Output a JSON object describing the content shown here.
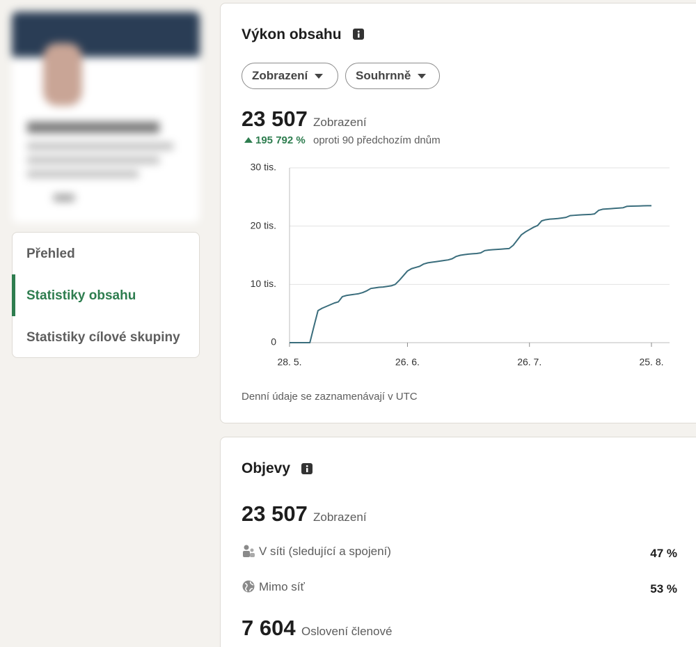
{
  "nav": {
    "items": [
      "Přehled",
      "Statistiky obsahu",
      "Statistiky cílové skupiny"
    ]
  },
  "performance": {
    "title": "Výkon obsahu",
    "dropdowns": [
      "Zobrazení",
      "Souhrnně"
    ],
    "total": "23 507",
    "total_label": "Zobrazení",
    "change": "195 792 %",
    "change_label": "oproti 90 předchozím dnům",
    "footnote": "Denní údaje se zaznamenávají v UTC"
  },
  "chart_data": {
    "type": "line",
    "categories": [
      "28. 5.",
      null,
      null,
      null,
      null,
      null,
      null,
      null,
      null,
      null,
      null,
      null,
      null,
      null,
      null,
      null,
      null,
      null,
      null,
      null,
      null,
      null,
      null,
      null,
      null,
      null,
      null,
      null,
      null,
      "26. 6.",
      null,
      null,
      null,
      null,
      null,
      null,
      null,
      null,
      null,
      null,
      null,
      null,
      null,
      null,
      null,
      null,
      null,
      null,
      null,
      null,
      null,
      null,
      null,
      null,
      null,
      null,
      null,
      null,
      null,
      "26. 7.",
      null,
      null,
      null,
      null,
      null,
      null,
      null,
      null,
      null,
      null,
      null,
      null,
      null,
      null,
      null,
      null,
      null,
      null,
      null,
      null,
      null,
      null,
      null,
      null,
      null,
      null,
      null,
      null,
      null,
      "25. 8."
    ],
    "values": [
      0,
      0,
      0,
      0,
      0,
      0,
      2800,
      5500,
      5900,
      6200,
      6500,
      6800,
      7000,
      7900,
      8100,
      8200,
      8300,
      8400,
      8600,
      8900,
      9300,
      9400,
      9500,
      9550,
      9650,
      9750,
      10000,
      10700,
      11500,
      12300,
      12700,
      12900,
      13100,
      13500,
      13700,
      13800,
      13900,
      14000,
      14100,
      14200,
      14400,
      14800,
      15000,
      15100,
      15200,
      15250,
      15300,
      15400,
      15800,
      15900,
      15950,
      16000,
      16050,
      16100,
      16150,
      16700,
      17600,
      18500,
      19000,
      19400,
      19800,
      20100,
      20900,
      21100,
      21200,
      21250,
      21300,
      21400,
      21500,
      21800,
      21850,
      21900,
      21950,
      21970,
      22000,
      22100,
      22700,
      22900,
      22950,
      23000,
      23050,
      23100,
      23150,
      23400,
      23420,
      23440,
      23460,
      23480,
      23500,
      23507
    ],
    "color": "#3a6d7c",
    "ylim": [
      0,
      30000
    ],
    "yticks": [
      0,
      {
        "value": 10000,
        "label": "10 tis."
      },
      {
        "value": 20000,
        "label": "20 tis."
      },
      {
        "value": 30000,
        "label": "30 tis."
      }
    ],
    "grid": true
  },
  "discovery": {
    "title": "Objevy",
    "total": "23 507",
    "total_label": "Zobrazení",
    "rows": [
      {
        "label": "V síti (sledující a spojení)",
        "value": "47 %"
      },
      {
        "label": "Mimo síť",
        "value": "53 %"
      }
    ],
    "reach": "7 604",
    "reach_label": "Oslovení členové"
  }
}
